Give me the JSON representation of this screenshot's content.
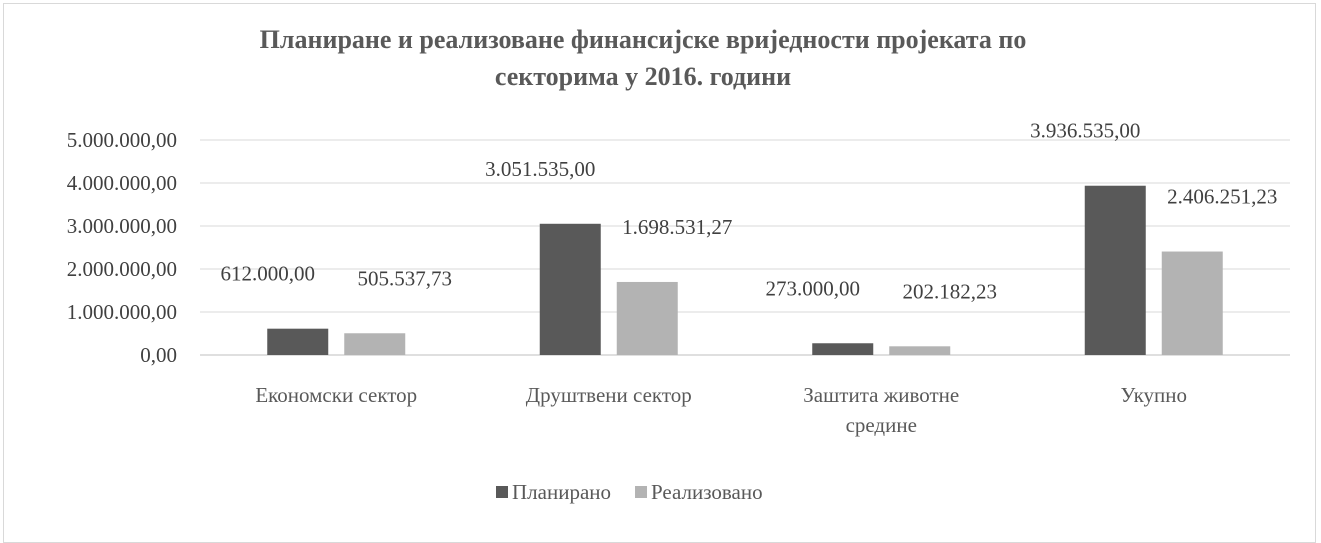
{
  "chart_data": {
    "type": "bar",
    "title": "Планиране и реализоване финансијске вриједности пројеката по секторима у 2016. години",
    "title_lines": [
      "Планиране и реализоване финансијске вриједности пројеката по",
      "секторима у 2016. години"
    ],
    "categories": [
      "Економски сектор",
      "Друштвени сектор",
      "Заштита животне средине",
      "Укупно"
    ],
    "category_lines": [
      [
        "Економски сектор"
      ],
      [
        "Друштвени сектор"
      ],
      [
        "Заштита животне",
        "средине"
      ],
      [
        "Укупно"
      ]
    ],
    "series": [
      {
        "name": "Планирано",
        "color": "#595959",
        "values": [
          612000.0,
          3051535.0,
          273000.0,
          3936535.0
        ],
        "labels": [
          "612.000,00",
          "3.051.535,00",
          "273.000,00",
          "3.936.535,00"
        ]
      },
      {
        "name": "Реализовано",
        "color": "#b3b3b3",
        "values": [
          505537.73,
          1698531.27,
          202182.23,
          2406251.23
        ],
        "labels": [
          "505.537,73",
          "1.698.531,27",
          "202.182,23",
          "2.406.251,23"
        ]
      }
    ],
    "ylim": [
      0,
      5000000
    ],
    "y_ticks": [
      0,
      1000000,
      2000000,
      3000000,
      4000000,
      5000000
    ],
    "y_tick_labels": [
      "0,00",
      "1.000.000,00",
      "2.000.000,00",
      "3.000.000,00",
      "4.000.000,00",
      "5.000.000,00"
    ],
    "grid": true,
    "legend_position": "bottom"
  }
}
